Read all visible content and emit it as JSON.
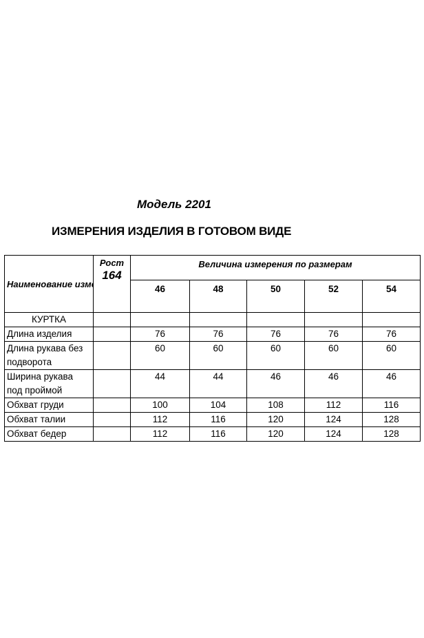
{
  "title": "Модель 2201",
  "subtitle": "ИЗМЕРЕНИЯ ИЗДЕЛИЯ В ГОТОВОМ ВИДЕ",
  "table": {
    "header_name": "Наименование измерения",
    "header_rost_label": "Рост",
    "header_rost_value": "164",
    "header_sizes": "Величина измерения по размерам",
    "sizes": [
      "46",
      "48",
      "50",
      "52",
      "54"
    ],
    "section": "КУРТКА",
    "rows": [
      {
        "name": "Длина изделия",
        "values": [
          "76",
          "76",
          "76",
          "76",
          "76"
        ]
      },
      {
        "name": "Длина рукава без подворота",
        "values": [
          "60",
          "60",
          "60",
          "60",
          "60"
        ]
      },
      {
        "name": "Ширина рукава под проймой",
        "values": [
          "44",
          "44",
          "46",
          "46",
          "46"
        ]
      },
      {
        "name": "Обхват груди",
        "values": [
          "100",
          "104",
          "108",
          "112",
          "116"
        ]
      },
      {
        "name": "Обхват талии",
        "values": [
          "112",
          "116",
          "120",
          "124",
          "128"
        ]
      },
      {
        "name": "Обхват бедер",
        "values": [
          "112",
          "116",
          "120",
          "124",
          "128"
        ]
      }
    ]
  }
}
